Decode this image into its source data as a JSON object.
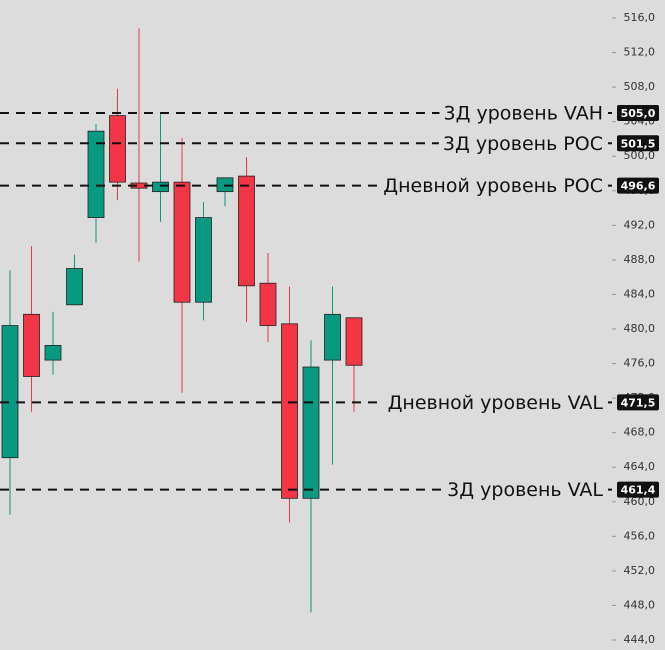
{
  "chart_data": {
    "type": "candlestick",
    "up_color": "#089981",
    "down_color": "#f23645",
    "ylim": [
      444,
      516
    ],
    "yticks": [
      {
        "value": 444,
        "label": "444,0"
      },
      {
        "value": 448,
        "label": "448,0"
      },
      {
        "value": 452,
        "label": "452,0"
      },
      {
        "value": 456,
        "label": "456,0"
      },
      {
        "value": 460,
        "label": "460,0"
      },
      {
        "value": 464,
        "label": "464,0"
      },
      {
        "value": 468,
        "label": "468,0"
      },
      {
        "value": 472,
        "label": "472,0"
      },
      {
        "value": 476,
        "label": "476,0"
      },
      {
        "value": 480,
        "label": "480,0"
      },
      {
        "value": 484,
        "label": "484,0"
      },
      {
        "value": 488,
        "label": "488,0"
      },
      {
        "value": 492,
        "label": "492,0"
      },
      {
        "value": 496,
        "label": "496,0"
      },
      {
        "value": 500,
        "label": "500,0"
      },
      {
        "value": 504,
        "label": "504,0"
      },
      {
        "value": 508,
        "label": "508,0"
      },
      {
        "value": 512,
        "label": "512,0"
      },
      {
        "value": 516,
        "label": "516,0"
      }
    ],
    "open": [
      465.1,
      481.7,
      476.4,
      482.8,
      492.9,
      504.7,
      496.9,
      495.9,
      497.0,
      483.1,
      495.9,
      497.7,
      485.3,
      480.6,
      460.4,
      476.4,
      481.3
    ],
    "high": [
      486.8,
      489.6,
      482.0,
      488.6,
      503.7,
      507.8,
      514.8,
      504.9,
      502.1,
      494.7,
      497.5,
      499.9,
      488.8,
      484.9,
      478.7,
      484.9,
      481.3
    ],
    "low": [
      458.5,
      470.4,
      474.7,
      482.8,
      490.0,
      494.9,
      487.8,
      492.4,
      472.6,
      481.0,
      494.2,
      480.8,
      478.5,
      457.6,
      447.2,
      464.3,
      470.4
    ],
    "close": [
      480.4,
      474.5,
      478.1,
      487.0,
      502.9,
      497.0,
      496.3,
      497.0,
      483.1,
      492.9,
      497.5,
      485.0,
      480.4,
      460.4,
      475.6,
      481.7,
      475.8
    ],
    "levels": [
      {
        "label": "3Д уровень VAH",
        "value": 505.0,
        "value_label": "505,0"
      },
      {
        "label": "3Д уровень POC",
        "value": 501.5,
        "value_label": "501,5"
      },
      {
        "label": "Дневной уровень POC",
        "value": 496.6,
        "value_label": "496,6"
      },
      {
        "label": "Дневной уровень VAL",
        "value": 471.5,
        "value_label": "471,5"
      },
      {
        "label": "3Д уровень VAL",
        "value": 461.4,
        "value_label": "461,4"
      }
    ]
  }
}
